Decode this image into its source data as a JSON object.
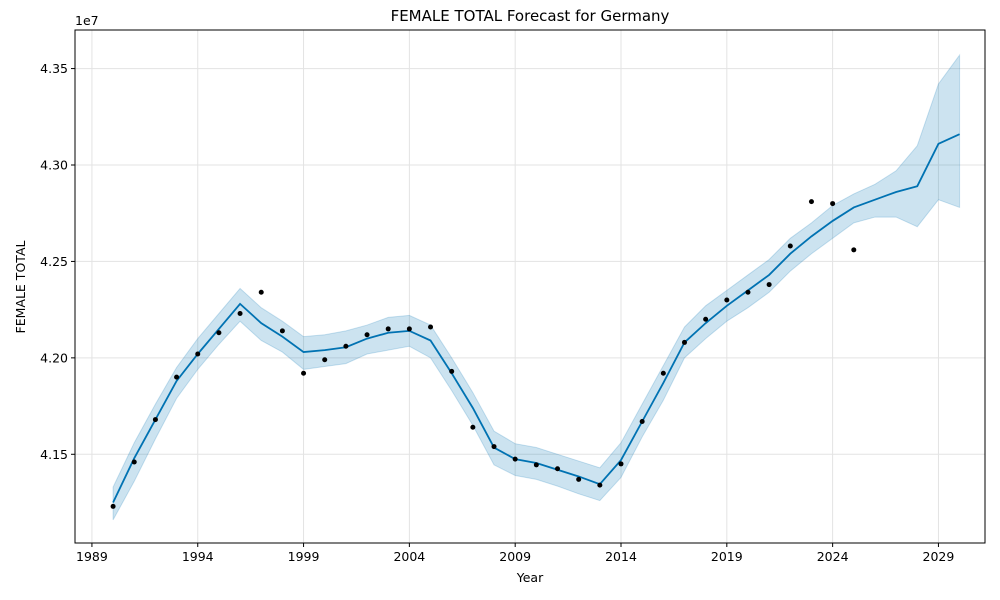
{
  "chart_data": {
    "type": "line",
    "title": "FEMALE TOTAL Forecast for Germany",
    "xlabel": "Year",
    "ylabel": "FEMALE TOTAL",
    "y_offset_label": "1e7",
    "xlim": [
      1988.2,
      2031.2
    ],
    "ylim": [
      41.04,
      43.7
    ],
    "x_ticks": [
      1989,
      1994,
      1999,
      2004,
      2009,
      2014,
      2019,
      2024,
      2029
    ],
    "y_ticks": [
      41.5,
      42.0,
      42.5,
      43.0,
      43.5
    ],
    "y_tick_labels": [
      "4.15",
      "4.20",
      "4.25",
      "4.30",
      "4.35"
    ],
    "grid": true,
    "colors": {
      "forecast_line": "#0072b2",
      "interval_fill": "#0072b2",
      "observed_points": "#000000"
    },
    "observed": {
      "x": [
        1990,
        1991,
        1992,
        1993,
        1994,
        1995,
        1996,
        1997,
        1998,
        1999,
        2000,
        2001,
        2002,
        2003,
        2004,
        2005,
        2006,
        2007,
        2008,
        2009,
        2010,
        2011,
        2012,
        2013,
        2014,
        2015,
        2016,
        2017,
        2018,
        2019,
        2020,
        2021,
        2022,
        2023,
        2024,
        2025
      ],
      "y": [
        41.23,
        41.46,
        41.68,
        41.9,
        42.02,
        42.13,
        42.23,
        42.34,
        42.14,
        41.92,
        41.99,
        42.06,
        42.12,
        42.15,
        42.15,
        42.16,
        41.93,
        41.64,
        41.54,
        41.475,
        41.445,
        41.425,
        41.37,
        41.34,
        41.45,
        41.67,
        41.92,
        42.08,
        42.2,
        42.3,
        42.34,
        42.38,
        42.58,
        42.81,
        42.8,
        42.56
      ]
    },
    "forecast": {
      "x": [
        1990,
        1991,
        1992,
        1993,
        1994,
        1995,
        1996,
        1997,
        1998,
        1999,
        2000,
        2001,
        2002,
        2003,
        2004,
        2005,
        2006,
        2007,
        2008,
        2009,
        2010,
        2011,
        2012,
        2013,
        2014,
        2015,
        2016,
        2017,
        2018,
        2019,
        2020,
        2021,
        2022,
        2023,
        2024,
        2025,
        2026,
        2027,
        2028,
        2029,
        2030
      ],
      "yhat": [
        41.25,
        41.48,
        41.68,
        41.88,
        42.02,
        42.15,
        42.28,
        42.18,
        42.11,
        42.03,
        42.04,
        42.055,
        42.1,
        42.13,
        42.14,
        42.09,
        41.92,
        41.74,
        41.535,
        41.475,
        41.455,
        41.42,
        41.385,
        41.345,
        41.47,
        41.67,
        41.87,
        42.08,
        42.18,
        42.27,
        42.35,
        42.43,
        42.54,
        42.63,
        42.71,
        42.78,
        42.82,
        42.86,
        42.89,
        43.11,
        43.16
      ],
      "yhat_lower": [
        41.16,
        41.36,
        41.58,
        41.79,
        41.94,
        42.07,
        42.19,
        42.09,
        42.03,
        41.94,
        41.955,
        41.97,
        42.02,
        42.04,
        42.06,
        42.0,
        41.83,
        41.65,
        41.445,
        41.39,
        41.37,
        41.335,
        41.295,
        41.26,
        41.38,
        41.59,
        41.78,
        42.0,
        42.1,
        42.19,
        42.26,
        42.34,
        42.45,
        42.54,
        42.62,
        42.7,
        42.73,
        42.73,
        42.68,
        42.82,
        42.78
      ],
      "yhat_upper": [
        41.33,
        41.56,
        41.76,
        41.95,
        42.1,
        42.23,
        42.36,
        42.26,
        42.19,
        42.11,
        42.12,
        42.14,
        42.17,
        42.21,
        42.22,
        42.17,
        42.0,
        41.82,
        41.62,
        41.555,
        41.535,
        41.5,
        41.465,
        41.43,
        41.56,
        41.76,
        41.96,
        42.16,
        42.27,
        42.35,
        42.43,
        42.51,
        42.62,
        42.7,
        42.79,
        42.85,
        42.9,
        42.97,
        43.1,
        43.42,
        43.57
      ]
    }
  }
}
